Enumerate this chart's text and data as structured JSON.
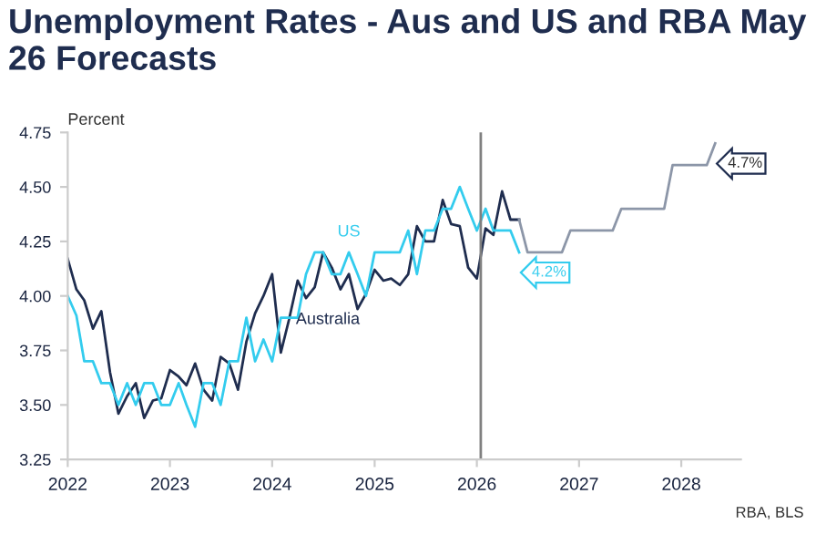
{
  "chart_data": {
    "type": "line",
    "title": "Unemployment Rates - Aus and US and RBA May 26 Forecasts",
    "ylabel": "Percent",
    "annotations": [
      "RBA, BLS"
    ],
    "xlim": [
      "2022-01",
      "2028-08"
    ],
    "xticks": [
      "2022",
      "2023",
      "2024",
      "2025",
      "2026",
      "2027",
      "2028"
    ],
    "ylim": [
      3.25,
      4.75
    ],
    "yticks": [
      3.25,
      {
        "value": 3.5,
        "label": "3.50"
      },
      3.75,
      {
        "value": 4.0,
        "label": "4.00"
      },
      4.25,
      {
        "value": 4.5,
        "label": "4.50"
      },
      4.75
    ],
    "grid": false,
    "marker": "none",
    "line_style": "solid",
    "ref_lines": [
      {
        "axis": "x",
        "value": "2026-01-15",
        "label": null,
        "color": "#808080"
      }
    ],
    "series": [
      {
        "name": "Australia",
        "color": "#1f2d4f",
        "x": [
          "2022-01",
          "2022-02",
          "2022-03",
          "2022-04",
          "2022-05",
          "2022-06",
          "2022-07",
          "2022-08",
          "2022-09",
          "2022-10",
          "2022-11",
          "2022-12",
          "2023-01",
          "2023-02",
          "2023-03",
          "2023-04",
          "2023-05",
          "2023-06",
          "2023-07",
          "2023-08",
          "2023-09",
          "2023-10",
          "2023-11",
          "2023-12",
          "2024-01",
          "2024-02",
          "2024-03",
          "2024-04",
          "2024-05",
          "2024-06",
          "2024-07",
          "2024-08",
          "2024-09",
          "2024-10",
          "2024-11",
          "2024-12",
          "2025-01",
          "2025-02",
          "2025-03",
          "2025-04",
          "2025-05",
          "2025-06",
          "2025-07",
          "2025-08",
          "2025-09",
          "2025-10",
          "2025-11",
          "2025-12",
          "2026-01",
          "2026-02",
          "2026-03",
          "2026-04",
          "2026-05",
          "2026-06"
        ],
        "values": [
          4.17,
          4.03,
          3.98,
          3.85,
          3.93,
          3.65,
          3.46,
          3.54,
          3.6,
          3.44,
          3.52,
          3.53,
          3.66,
          3.63,
          3.59,
          3.69,
          3.57,
          3.52,
          3.72,
          3.69,
          3.57,
          3.79,
          3.92,
          4.0,
          4.1,
          3.74,
          3.89,
          4.07,
          3.99,
          4.04,
          4.2,
          4.13,
          4.03,
          4.1,
          3.94,
          4.01,
          4.12,
          4.07,
          4.08,
          4.05,
          4.1,
          4.32,
          4.25,
          4.25,
          4.44,
          4.33,
          4.32,
          4.13,
          4.08,
          4.31,
          4.28,
          4.48,
          4.35,
          4.35
        ]
      },
      {
        "name": "US",
        "color": "#33ccee",
        "x": [
          "2022-01",
          "2022-02",
          "2022-03",
          "2022-04",
          "2022-05",
          "2022-06",
          "2022-07",
          "2022-08",
          "2022-09",
          "2022-10",
          "2022-11",
          "2022-12",
          "2023-01",
          "2023-02",
          "2023-03",
          "2023-04",
          "2023-05",
          "2023-06",
          "2023-07",
          "2023-08",
          "2023-09",
          "2023-10",
          "2023-11",
          "2023-12",
          "2024-01",
          "2024-02",
          "2024-03",
          "2024-04",
          "2024-05",
          "2024-06",
          "2024-07",
          "2024-08",
          "2024-09",
          "2024-10",
          "2024-11",
          "2024-12",
          "2025-01",
          "2025-02",
          "2025-03",
          "2025-04",
          "2025-05",
          "2025-06",
          "2025-07",
          "2025-08",
          "2025-09",
          "2025-10",
          "2025-11",
          "2025-12",
          "2026-01",
          "2026-02",
          "2026-03",
          "2026-04",
          "2026-05",
          "2026-06"
        ],
        "values": [
          4.0,
          3.91,
          3.7,
          3.7,
          3.6,
          3.6,
          3.5,
          3.6,
          3.5,
          3.6,
          3.6,
          3.5,
          3.5,
          3.6,
          3.5,
          3.4,
          3.6,
          3.6,
          3.5,
          3.7,
          3.7,
          3.9,
          3.7,
          3.8,
          3.7,
          3.9,
          3.9,
          3.9,
          4.1,
          4.2,
          4.2,
          4.1,
          4.1,
          4.2,
          4.1,
          4.0,
          4.2,
          4.2,
          4.2,
          4.2,
          4.3,
          4.1,
          4.3,
          4.3,
          4.4,
          4.4,
          4.5,
          4.4,
          4.3,
          4.4,
          4.3,
          4.3,
          4.3,
          4.2
        ],
        "value_labels": [
          null,
          null,
          null,
          null,
          null,
          null,
          null,
          null,
          null,
          null,
          null,
          null,
          null,
          null,
          null,
          null,
          null,
          null,
          null,
          null,
          null,
          null,
          null,
          null,
          null,
          null,
          null,
          null,
          null,
          null,
          null,
          null,
          null,
          null,
          null,
          null,
          null,
          null,
          null,
          null,
          null,
          null,
          null,
          null,
          null,
          null,
          null,
          null,
          null,
          null,
          null,
          null,
          null,
          "4.2%"
        ]
      },
      {
        "color": "#8c96a8",
        "x": [
          "2026-06",
          "2026-07",
          "2026-11",
          "2026-12",
          "2027-05",
          "2027-06",
          "2027-11",
          "2027-12",
          "2028-04",
          "2028-05"
        ],
        "values": [
          4.35,
          4.2,
          4.2,
          4.3,
          4.3,
          4.4,
          4.4,
          4.6,
          4.6,
          4.7
        ],
        "value_labels": [
          null,
          null,
          null,
          null,
          null,
          null,
          null,
          null,
          null,
          "4.7%"
        ]
      }
    ]
  }
}
